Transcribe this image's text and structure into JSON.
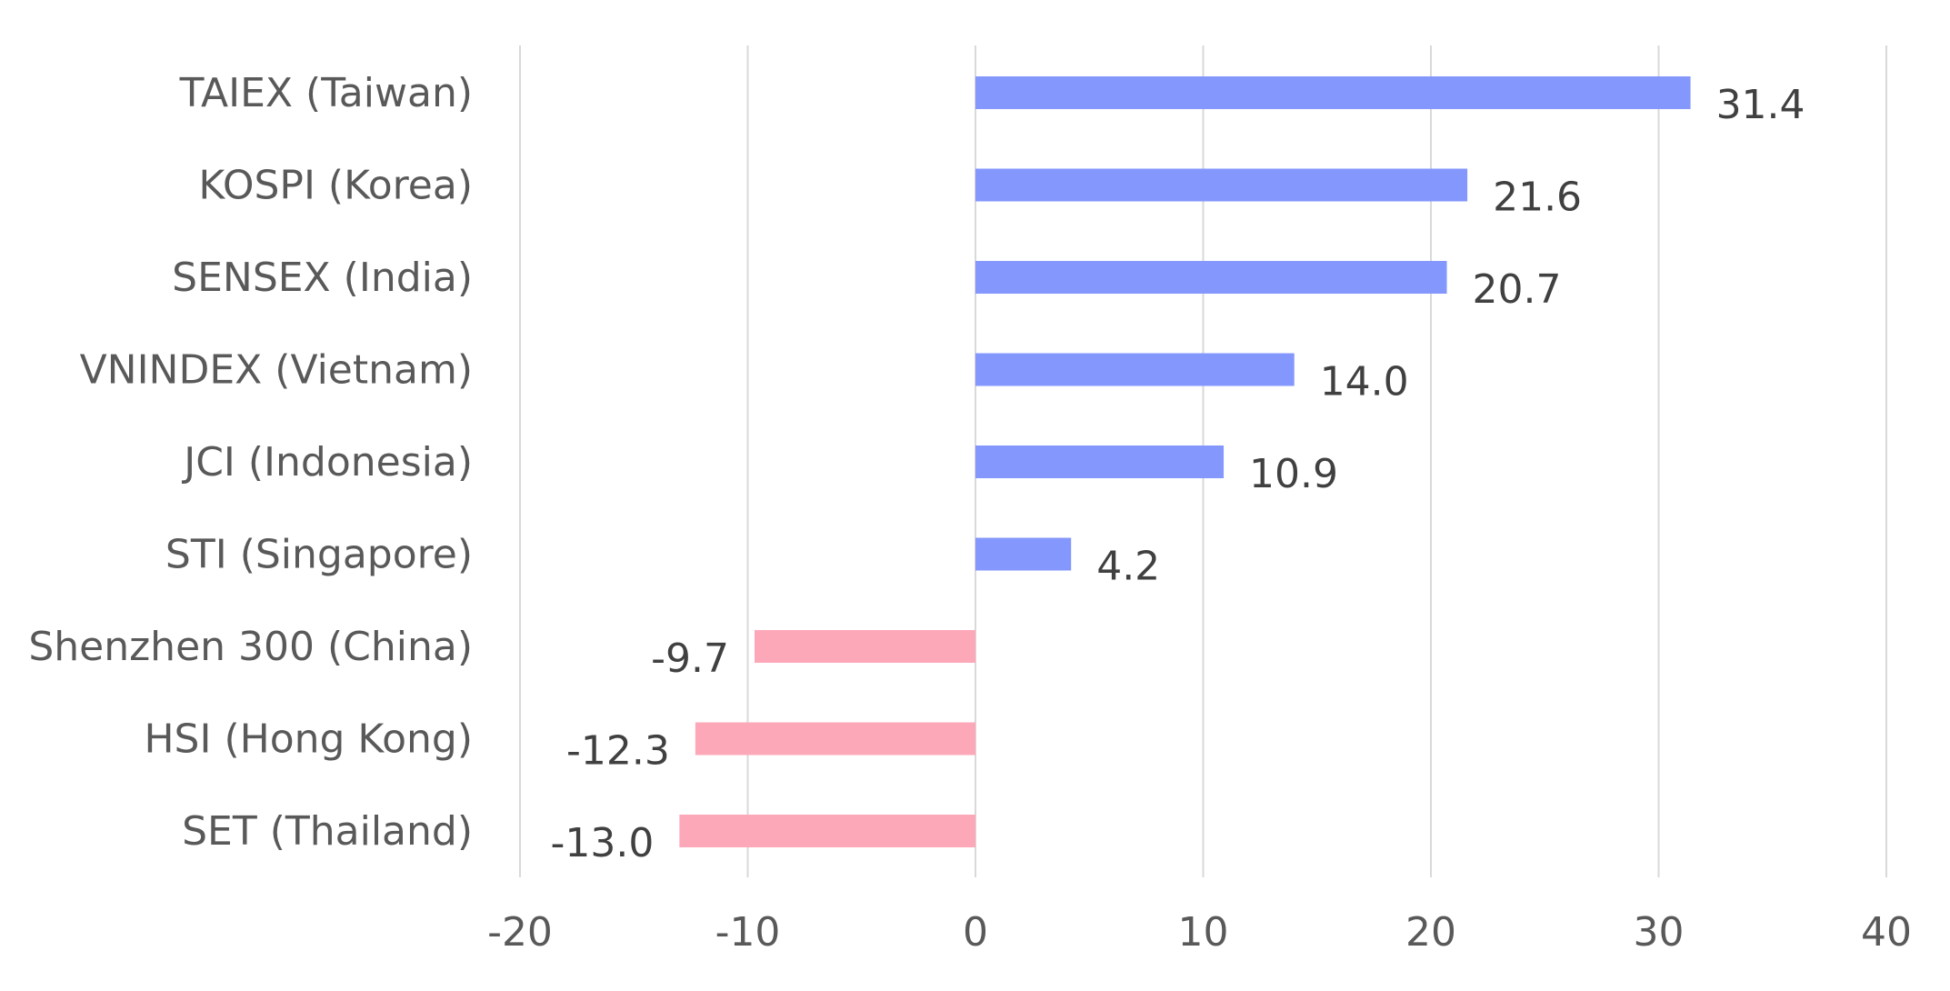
{
  "chart_data": {
    "type": "bar",
    "orientation": "horizontal",
    "title": "",
    "xlabel": "",
    "ylabel": "",
    "categories": [
      "TAIEX (Taiwan)",
      "KOSPI (Korea)",
      "SENSEX (India)",
      "VNINDEX (Vietnam)",
      "JCI (Indonesia)",
      "STI (Singapore)",
      "Shenzhen 300 (China)",
      "HSI (Hong Kong)",
      "SET (Thailand)"
    ],
    "values": [
      31.4,
      21.6,
      20.7,
      14.0,
      10.9,
      4.2,
      -9.7,
      -12.3,
      -13.0
    ],
    "value_labels": [
      "31.4",
      "21.6",
      "20.7",
      "14.0",
      "10.9",
      "4.2",
      "-9.7",
      "-12.3",
      "-13.0"
    ],
    "xlim": [
      -20,
      40
    ],
    "x_ticks": [
      -20,
      -10,
      0,
      10,
      20,
      30,
      40
    ],
    "x_tick_labels": [
      "-20",
      "-10",
      "0",
      "10",
      "20",
      "30",
      "40"
    ],
    "grid": true,
    "legend": "none",
    "colors": {
      "positive": "#8497fd",
      "negative": "#fda8b9",
      "gridline": "#d9d9d9",
      "category_text": "#595959",
      "value_text": "#404040"
    }
  }
}
